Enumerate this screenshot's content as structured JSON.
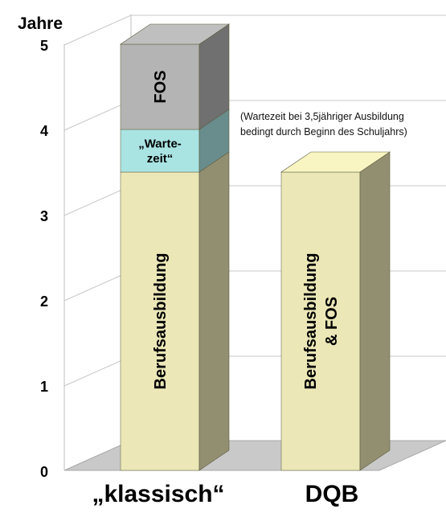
{
  "chart_data": {
    "type": "bar",
    "stacked": true,
    "ylabel": "Jahre",
    "ylim": [
      0,
      5
    ],
    "yticks": [
      0,
      1,
      2,
      3,
      4,
      5
    ],
    "categories": [
      "„klassisch“",
      "DQB"
    ],
    "series": [
      {
        "name": "Berufsausbildung",
        "values": [
          3.5,
          3.5
        ],
        "labels": [
          [
            "Berufsausbildung"
          ],
          [
            "Berufsausbildung",
            "& FOS"
          ]
        ],
        "color": "#ebe7b7"
      },
      {
        "name": "„Warte-zeit“",
        "values": [
          0.5,
          0
        ],
        "labels": [
          [
            "„Warte-",
            "zeit“"
          ],
          []
        ],
        "color": "#a9e4e3"
      },
      {
        "name": "FOS",
        "values": [
          1.0,
          0
        ],
        "labels": [
          [
            "FOS"
          ],
          []
        ],
        "color": "#b4b4b4"
      }
    ],
    "annotations": [
      "(Wartezeit bei 3,5jähriger Ausbildung",
      "bedingt durch Beginn des Schuljahrs)"
    ],
    "grid": true
  }
}
